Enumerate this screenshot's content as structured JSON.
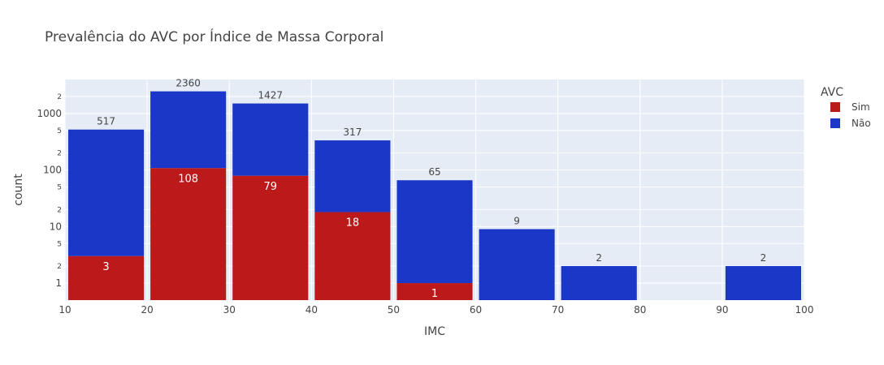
{
  "chart_data": {
    "type": "bar",
    "barmode": "stack",
    "title": "Prevalência do AVC por Índice de Massa Corporal",
    "xlabel": "IMC",
    "ylabel": "count",
    "xlim": [
      10,
      100
    ],
    "ylim": [
      0.5,
      4000
    ],
    "yscale": "log",
    "x_ticks": [
      "10",
      "20",
      "30",
      "40",
      "50",
      "60",
      "70",
      "80",
      "90",
      "100"
    ],
    "y_major_ticks": [
      {
        "value": 1,
        "label": "1"
      },
      {
        "value": 10,
        "label": "10"
      },
      {
        "value": 100,
        "label": "100"
      },
      {
        "value": 1000,
        "label": "1000"
      }
    ],
    "y_minor_ticks": [
      {
        "value": 2,
        "label": "2"
      },
      {
        "value": 5,
        "label": "5"
      },
      {
        "value": 20,
        "label": "2"
      },
      {
        "value": 50,
        "label": "5"
      },
      {
        "value": 200,
        "label": "2"
      },
      {
        "value": 500,
        "label": "5"
      },
      {
        "value": 2000,
        "label": "2"
      }
    ],
    "bins": [
      {
        "start": 10,
        "end": 20
      },
      {
        "start": 20,
        "end": 30
      },
      {
        "start": 30,
        "end": 40
      },
      {
        "start": 40,
        "end": 50
      },
      {
        "start": 50,
        "end": 60
      },
      {
        "start": 60,
        "end": 70
      },
      {
        "start": 70,
        "end": 80
      },
      {
        "start": 80,
        "end": 90
      },
      {
        "start": 90,
        "end": 100
      }
    ],
    "legend_title": "AVC",
    "legend_position": "top-right",
    "series": [
      {
        "name": "Sim",
        "color": "#bc1a1a",
        "values": [
          3,
          108,
          79,
          18,
          1,
          0,
          0,
          0,
          0
        ]
      },
      {
        "name": "Não",
        "color": "#1a37c7",
        "values": [
          517,
          2360,
          1427,
          317,
          65,
          9,
          2,
          0,
          2
        ]
      }
    ],
    "plot_background": "#e5ecf6",
    "grid": true
  }
}
